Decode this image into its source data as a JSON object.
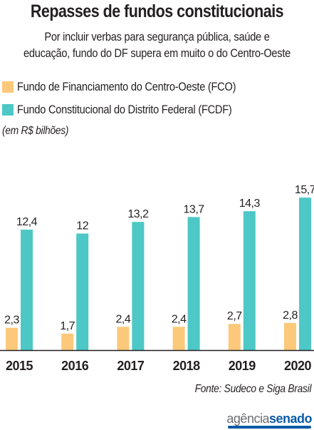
{
  "title": "Repasses de fundos constitucionais",
  "subtitle_lines": [
    "Por incluir verbas para segurança pública, saúde e",
    "educação, fundo do DF supera em muito o do Centro-Oeste"
  ],
  "units_note": "(em R$ bilhões)",
  "source": "Fonte: Sudeco e Siga Brasil",
  "logo": {
    "part1": "agência",
    "part2": "senado"
  },
  "colors": {
    "fco": "#fcc97a",
    "fcdf": "#4dc8c6",
    "text": "#231f20",
    "axis": "#231f20",
    "brand": "#0a5aa8"
  },
  "chart_data": {
    "type": "bar",
    "categories": [
      "2015",
      "2016",
      "2017",
      "2018",
      "2019",
      "2020"
    ],
    "series": [
      {
        "name": "Fundo de Financiamento do Centro-Oeste (FCO)",
        "values": [
          2.3,
          1.7,
          2.4,
          2.4,
          2.7,
          2.8
        ],
        "labels": [
          "2,3",
          "1,7",
          "2,4",
          "2,4",
          "2,7",
          "2,8"
        ],
        "color": "#fcc97a"
      },
      {
        "name": "Fundo Constitucional do Distrito Federal (FCDF)",
        "values": [
          12.4,
          12,
          13.2,
          13.7,
          14.3,
          15.7
        ],
        "labels": [
          "12,4",
          "12",
          "13,2",
          "13,7",
          "14,3",
          "15,7"
        ],
        "color": "#4dc8c6"
      }
    ],
    "ylim": [
      0,
      16
    ],
    "grid": false,
    "legend": "top-left"
  }
}
